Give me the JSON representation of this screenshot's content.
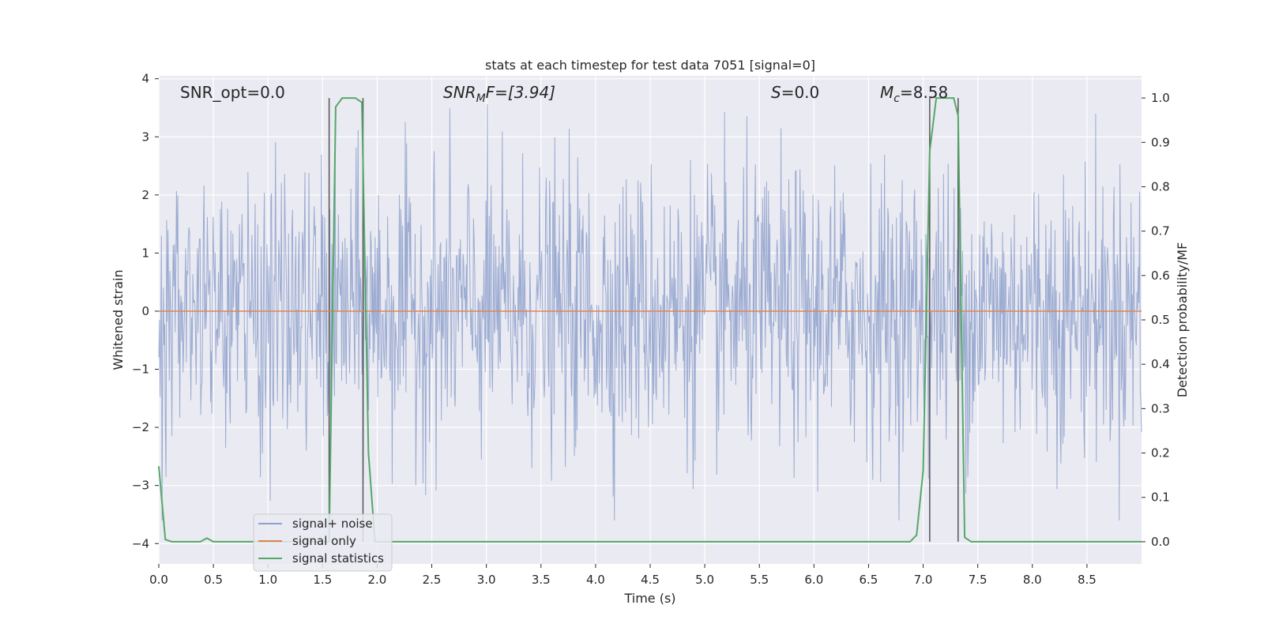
{
  "chart_data": {
    "type": "line",
    "title": "stats at each timestep for test data 7051 [signal=0]",
    "xlabel": "Time (s)",
    "ylabel_left": "Whitened strain",
    "ylabel_right": "Detection probability/MF",
    "xlim": [
      0.0,
      9.0
    ],
    "ylim_left": [
      -4.35,
      4.05
    ],
    "ylim_right": [
      -0.05,
      1.05
    ],
    "x_ticks": [
      0.0,
      0.5,
      1.0,
      1.5,
      2.0,
      2.5,
      3.0,
      3.5,
      4.0,
      4.5,
      5.0,
      5.5,
      6.0,
      6.5,
      7.0,
      7.5,
      8.0,
      8.5
    ],
    "x_tick_labels": [
      "0.0",
      "0.5",
      "1.0",
      "1.5",
      "2.0",
      "2.5",
      "3.0",
      "3.5",
      "4.0",
      "4.5",
      "5.0",
      "5.5",
      "6.0",
      "6.5",
      "7.0",
      "7.5",
      "8.0",
      "8.5"
    ],
    "y_left_ticks": [
      4,
      3,
      2,
      1,
      0,
      -1,
      -2,
      -3,
      -4
    ],
    "y_left_tick_labels": [
      "4",
      "3",
      "2",
      "1",
      "0",
      "−1",
      "−2",
      "−3",
      "−4"
    ],
    "y_right_ticks": [
      1.0,
      0.9,
      0.8,
      0.7,
      0.6,
      0.5,
      0.4,
      0.3,
      0.2,
      0.1,
      0.0
    ],
    "y_right_tick_labels": [
      "1.0",
      "0.9",
      "0.8",
      "0.7",
      "0.6",
      "0.5",
      "0.4",
      "0.3",
      "0.2",
      "0.1",
      "0.0"
    ],
    "grid": true,
    "legend_position": "lower-left",
    "annotations": {
      "snr_opt": "SNR_opt=0.0",
      "snr_mf_symbol": "SNR",
      "snr_mf_sub": "M",
      "snr_mf_rest": "F=[3.94]",
      "s_symbol": "S",
      "s_rest": "=0.0",
      "mc_symbol": "M",
      "mc_sub": "c",
      "mc_rest": "=8.58"
    },
    "vertical_markers_x": [
      1.56,
      1.87,
      7.06,
      7.32
    ],
    "series": [
      {
        "name": "signal+ noise",
        "color": "#8da0cb",
        "axis": "left",
        "description_range": [
          -3.6,
          3.6
        ],
        "typical_amplitude": 1.2
      },
      {
        "name": "signal only",
        "color": "#dd8452",
        "axis": "left",
        "x": [
          0.0,
          9.0
        ],
        "y": [
          0.0,
          0.0
        ]
      },
      {
        "name": "signal statistics",
        "color": "#55a868",
        "axis": "right",
        "x": [
          0.0,
          0.06,
          0.12,
          0.2,
          0.3,
          0.38,
          0.44,
          0.5,
          0.6,
          1.0,
          1.5,
          1.56,
          1.62,
          1.68,
          1.8,
          1.86,
          1.92,
          1.98,
          2.5,
          3.0,
          4.0,
          5.0,
          6.0,
          6.5,
          6.88,
          6.94,
          7.0,
          7.06,
          7.12,
          7.2,
          7.28,
          7.32,
          7.38,
          7.44,
          7.5,
          8.0,
          8.5,
          9.0
        ],
        "y": [
          0.17,
          0.005,
          0.0,
          0.0,
          0.0,
          0.0,
          0.008,
          0.0,
          0.0,
          0.0,
          0.0,
          0.0,
          0.98,
          1.0,
          1.0,
          0.99,
          0.2,
          0.0,
          0.0,
          0.0,
          0.0,
          0.0,
          0.0,
          0.0,
          0.0,
          0.015,
          0.16,
          0.88,
          1.0,
          1.0,
          1.0,
          0.96,
          0.01,
          0.0,
          0.0,
          0.0,
          0.0,
          0.0
        ]
      }
    ]
  }
}
